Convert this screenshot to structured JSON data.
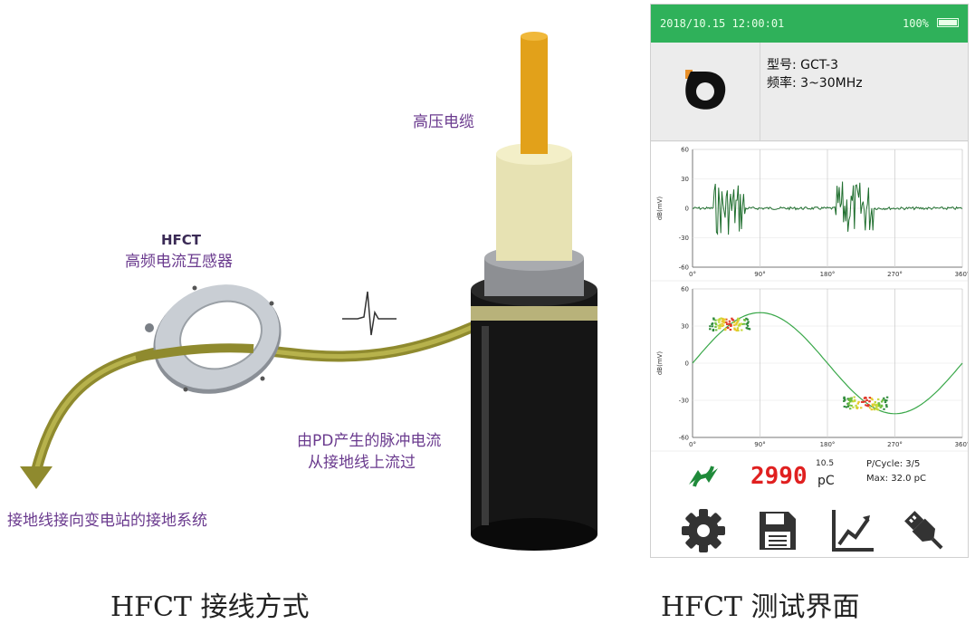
{
  "diagram": {
    "cable_label": "高压电缆",
    "hfct_title": "HFCT",
    "hfct_subtitle": "高频电流互感器",
    "pulse_label_line1": "由PD产生的脉冲电流",
    "pulse_label_line2": "从接地线上流过",
    "ground_label": "接地线接向变电站的接地系统"
  },
  "captions": {
    "left": "HFCT 接线方式",
    "right": "HFCT 测试界面"
  },
  "device": {
    "status": {
      "datetime": "2018/10.15 12:00:01",
      "battery": "100%"
    },
    "info": {
      "model": "型号: GCT-3",
      "frequency": "频率: 3~30MHz"
    },
    "plot1": {
      "y_ticks": [
        "60",
        "30",
        "0",
        "-30",
        "-60"
      ],
      "x_ticks": [
        "0°",
        "90°",
        "180°",
        "270°",
        "360°"
      ],
      "ylabel": "dB(mV)"
    },
    "plot2": {
      "y_ticks": [
        "60",
        "30",
        "0",
        "-30",
        "-60"
      ],
      "x_ticks": [
        "0°",
        "90°",
        "180°",
        "270°",
        "360°"
      ],
      "ylabel": "dB(mV)"
    },
    "readout": {
      "value": "2990",
      "range_top": "10.5",
      "unit": "pC",
      "pcycle": "P/Cycle: 3/5",
      "max": "Max: 32.0 pC"
    },
    "colors": {
      "accent": "#2fb15a",
      "value": "#e02020",
      "trace": "#1f6e2e",
      "sine": "#3aa84a"
    },
    "toolbar": {
      "icons": [
        "gear-icon",
        "save-icon",
        "chart-icon",
        "usb-icon"
      ]
    }
  }
}
